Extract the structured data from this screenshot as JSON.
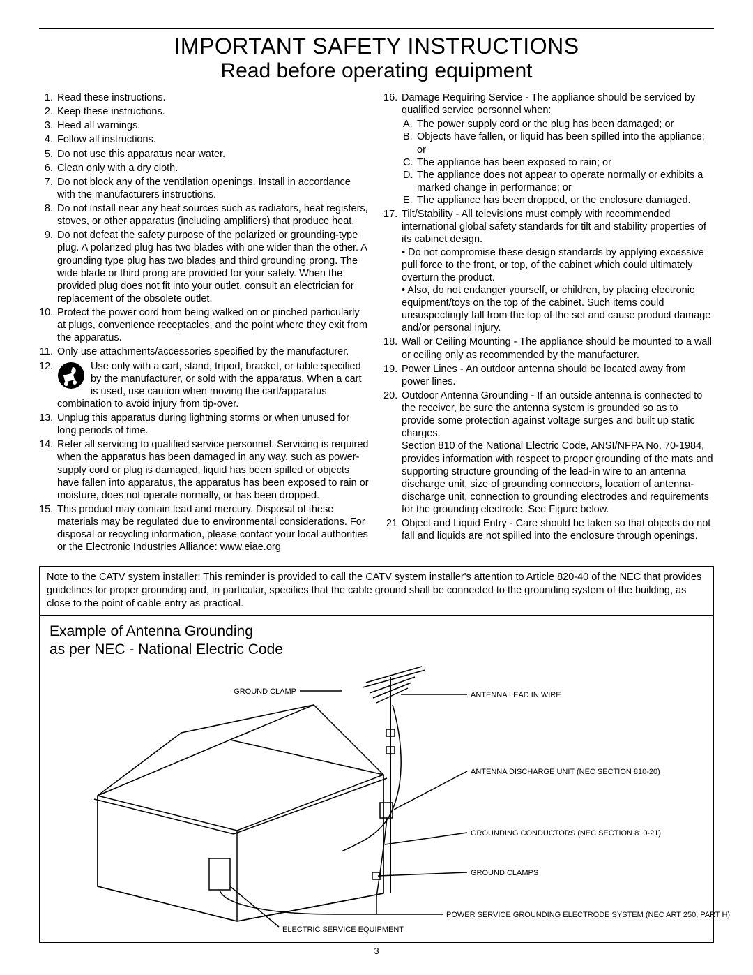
{
  "title_line1": "IMPORTANT SAFETY INSTRUCTIONS",
  "title_line2": "Read before operating equipment",
  "page_number": "3",
  "left_items": [
    {
      "n": "1.",
      "t": "Read these instructions."
    },
    {
      "n": "2.",
      "t": "Keep these instructions."
    },
    {
      "n": "3.",
      "t": "Heed all warnings."
    },
    {
      "n": "4.",
      "t": "Follow all instructions."
    },
    {
      "n": "5.",
      "t": "Do not use this apparatus near water."
    },
    {
      "n": "6.",
      "t": "Clean only with a dry cloth."
    },
    {
      "n": "7.",
      "t": "Do not block any of the ventilation openings. Install in accordance with the manufacturers instructions."
    },
    {
      "n": "8.",
      "t": "Do not install near any heat sources such as radiators, heat registers, stoves, or other apparatus (including amplifiers) that produce heat."
    },
    {
      "n": "9.",
      "t": "Do not defeat the safety purpose of the polarized or grounding-type plug. A polarized plug has two blades with one wider than the other. A grounding type plug has two blades and third grounding prong. The wide blade or third prong are provided for your safety. When the provided plug does not fit into your outlet, consult an electrician for replacement of the obsolete outlet."
    },
    {
      "n": "10.",
      "t": "Protect the power cord from being walked on or pinched particularly at plugs, convenience receptacles, and the point where they exit from the apparatus."
    },
    {
      "n": "11.",
      "t": "Only use attachments/accessories specified by the manufacturer."
    },
    {
      "n": "12.",
      "t": "Use only with a cart, stand, tripod, bracket, or table specified by the manufacturer, or sold with the apparatus. When a cart is used, use caution when moving the cart/apparatus combination to avoid injury from tip-over.",
      "cart": true
    },
    {
      "n": "13.",
      "t": "Unplug this apparatus during lightning storms or when unused for long periods of time."
    },
    {
      "n": "14.",
      "t": "Refer all servicing to qualified service personnel. Servicing is required when the apparatus has been damaged in any way, such as power-supply cord or plug is damaged, liquid has been spilled or objects have fallen into apparatus, the apparatus has been exposed to rain or moisture, does not operate normally, or has been dropped."
    },
    {
      "n": "15.",
      "t": "This product may contain lead and mercury. Disposal of these materials may be regulated due to environmental considerations. For disposal or recycling information, please contact your local authorities or the Electronic Industries Alliance: www.eiae.org"
    }
  ],
  "right_items": [
    {
      "n": "16.",
      "t": "Damage Requiring Service   - The appliance should be serviced by qualified service personnel when:",
      "sub": [
        {
          "l": "A.",
          "s": "The power supply cord or the plug has been damaged; or"
        },
        {
          "l": "B.",
          "s": "Objects have fallen, or liquid has been spilled into the appliance; or"
        },
        {
          "l": "C.",
          "s": "The appliance has been exposed to rain; or"
        },
        {
          "l": "D.",
          "s": "The appliance does not appear to operate normally or exhibits a marked change in performance; or"
        },
        {
          "l": "E.",
          "s": "The appliance has been dropped, or the enclosure damaged."
        }
      ]
    },
    {
      "n": "17.",
      "t": "Tilt/Stability   - All televisions must comply with recommended international global safety standards for tilt and stability properties of its cabinet design.",
      "bullets": [
        "• Do not compromise these design standards by applying excessive pull force to the front, or top, of the cabinet which could ultimately overturn the product.",
        "• Also, do not endanger yourself, or children, by placing electronic equipment/toys on the top of the cabinet. Such items could unsuspectingly fall from the top of the set and cause product damage and/or personal injury."
      ]
    },
    {
      "n": "18.",
      "t": "Wall or Ceiling Mounting   - The appliance should be mounted to a wall or ceiling only as recommended by the manufacturer."
    },
    {
      "n": "19.",
      "t": "Power Lines   - An outdoor antenna should be located away from power lines."
    },
    {
      "n": "20.",
      "t": "Outdoor Antenna Grounding   - If an outside antenna is connected to the receiver, be sure the antenna system is grounded so as to provide some protection against voltage surges and built up static charges.",
      "extra": "Section 810 of the National Electric Code, ANSI/NFPA No. 70-1984, provides information with respect to proper grounding of the mats and supporting structure grounding of the lead-in wire to an antenna discharge unit, size of grounding connectors, location of antenna-discharge unit, connection to grounding electrodes and requirements for the grounding electrode. See Figure below."
    },
    {
      "n": "21",
      "t": "Object and Liquid Entry   - Care should be taken so that objects do not fall and liquids are not spilled into the enclosure through openings."
    }
  ],
  "note_text": "Note to the CATV system installer: This reminder is provided to call the CATV system installer's attention to Article 820-40 of the NEC that provides guidelines for proper grounding and, in particular, specifies that the cable ground shall be connected to the grounding system of the building, as close to the point of cable entry as practical.",
  "diagram": {
    "title_l1": "Example of Antenna Grounding",
    "title_l2": "as per NEC - National Electric Code",
    "labels": {
      "ground_clamp_top": "GROUND CLAMP",
      "antenna_lead": "ANTENNA LEAD IN WIRE",
      "discharge_unit": "ANTENNA DISCHARGE UNIT (NEC SECTION 810-20)",
      "grounding_conductors": "GROUNDING CONDUCTORS (NEC SECTION 810-21)",
      "ground_clamps": "GROUND CLAMPS",
      "electric_service": "ELECTRIC SERVICE EQUIPMENT",
      "power_electrode": "POWER SERVICE GROUNDING ELECTRODE SYSTEM (NEC ART 250, PART H)"
    },
    "colors": {
      "stroke": "#000000",
      "fill_bg": "#ffffff"
    }
  }
}
